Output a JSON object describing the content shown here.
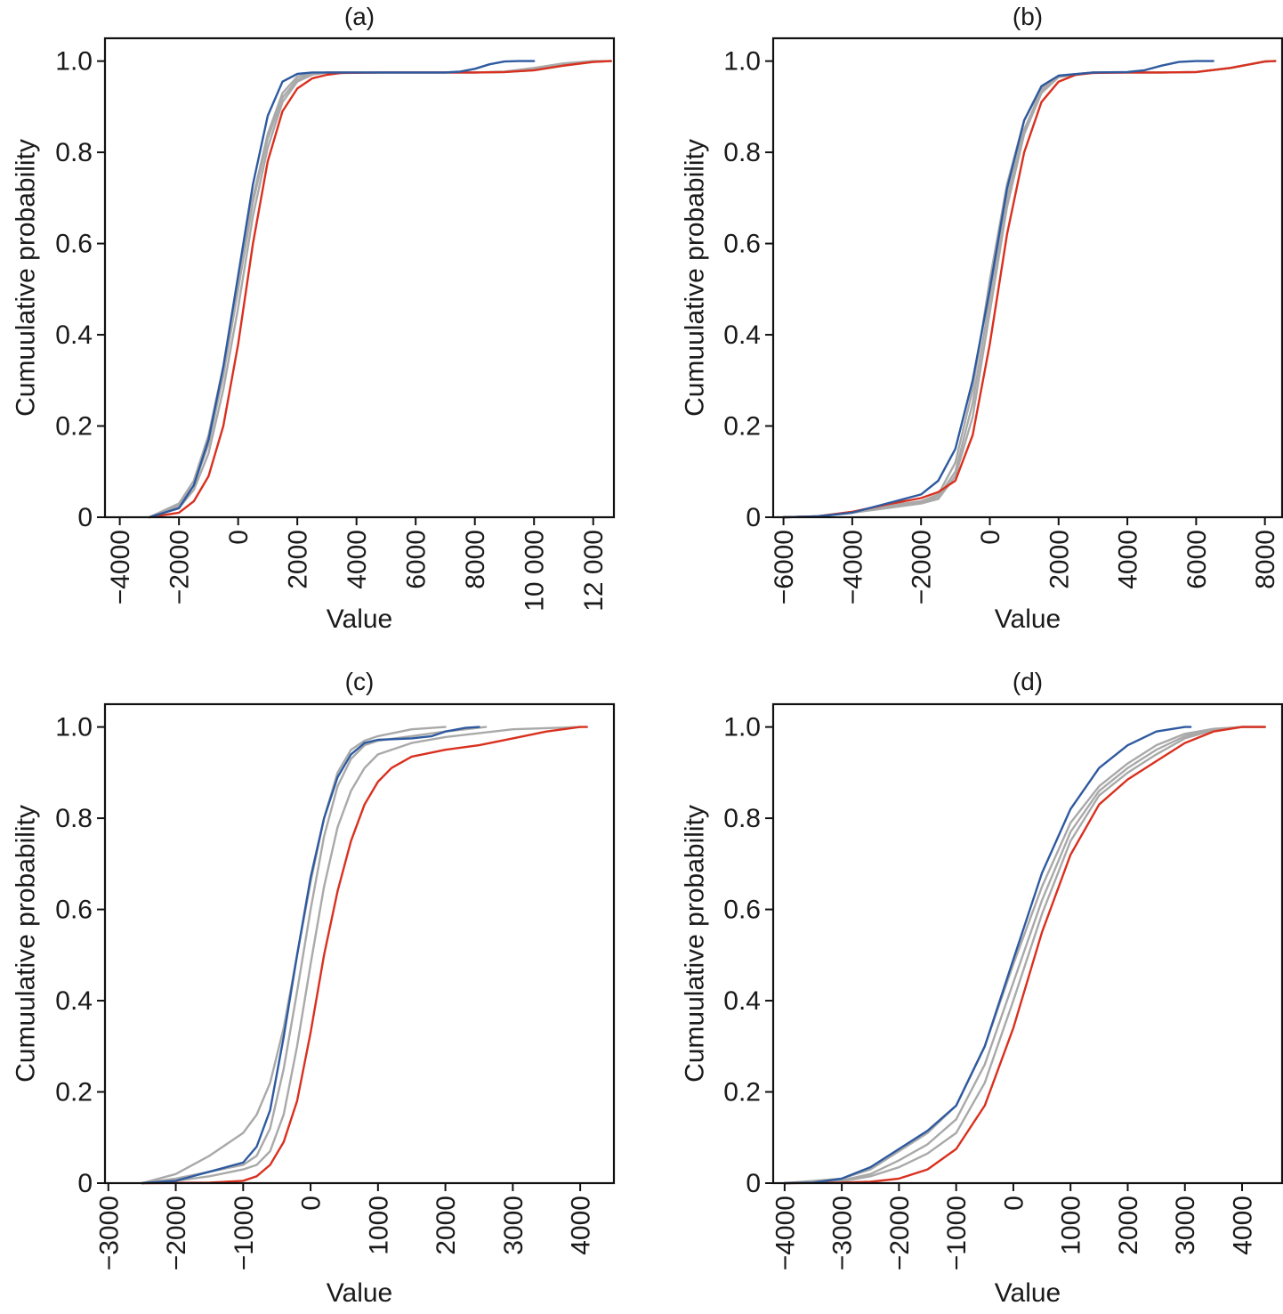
{
  "chart_data": [
    {
      "type": "line",
      "title": "(a)",
      "xlabel": "Value",
      "ylabel": "Cumuulative probability",
      "xlim": [
        -4500,
        12700
      ],
      "ylim": [
        0,
        1.05
      ],
      "xticks": [
        -4000,
        -2000,
        0,
        2000,
        4000,
        6000,
        8000,
        10000,
        12000
      ],
      "xtick_labels": [
        "−4000",
        "−2000",
        "0",
        "2000",
        "4000",
        "6000",
        "8000",
        "10 000",
        "12 000"
      ],
      "yticks": [
        0,
        0.2,
        0.4,
        0.6,
        0.8,
        1.0
      ],
      "ytick_labels": [
        "0",
        "0.2",
        "0.4",
        "0.6",
        "0.8",
        "1.0"
      ],
      "series": [
        {
          "name": "gray-1",
          "color": "#a9a9a9",
          "x": [
            -3000,
            -2000,
            -1500,
            -1000,
            -500,
            0,
            500,
            1000,
            1500,
            2000,
            2500,
            3000,
            5000,
            7000,
            8000,
            9000,
            10000,
            11000,
            12000,
            12600
          ],
          "y": [
            0,
            0.03,
            0.08,
            0.18,
            0.33,
            0.52,
            0.7,
            0.84,
            0.93,
            0.966,
            0.973,
            0.975,
            0.975,
            0.975,
            0.975,
            0.977,
            0.985,
            0.995,
            1.0,
            1.0
          ]
        },
        {
          "name": "gray-2",
          "color": "#a9a9a9",
          "x": [
            -3000,
            -2000,
            -1500,
            -1000,
            -500,
            0,
            500,
            1000,
            1500,
            2000,
            2500,
            3000,
            5000,
            7000,
            8000,
            9000,
            10000,
            11000,
            12000,
            12600
          ],
          "y": [
            0,
            0.025,
            0.07,
            0.16,
            0.31,
            0.5,
            0.69,
            0.83,
            0.92,
            0.96,
            0.972,
            0.975,
            0.975,
            0.975,
            0.975,
            0.976,
            0.982,
            0.992,
            0.999,
            1.0
          ]
        },
        {
          "name": "gray-3",
          "color": "#a9a9a9",
          "x": [
            -3000,
            -2000,
            -1500,
            -1000,
            -500,
            0,
            500,
            1000,
            1500,
            2000,
            2500,
            3000,
            5000,
            7000,
            8000,
            9000,
            10000,
            11000,
            12000,
            12600
          ],
          "y": [
            0,
            0.02,
            0.06,
            0.14,
            0.28,
            0.46,
            0.66,
            0.81,
            0.91,
            0.955,
            0.97,
            0.975,
            0.975,
            0.975,
            0.975,
            0.976,
            0.98,
            0.99,
            0.998,
            1.0
          ]
        },
        {
          "name": "red",
          "color": "#d9301f",
          "x": [
            -3000,
            -2000,
            -1500,
            -1000,
            -500,
            0,
            500,
            1000,
            1500,
            2000,
            2500,
            3000,
            3500,
            5000,
            7000,
            8000,
            9000,
            10000,
            11000,
            12000,
            12600
          ],
          "y": [
            0,
            0.01,
            0.035,
            0.09,
            0.2,
            0.38,
            0.6,
            0.78,
            0.89,
            0.94,
            0.962,
            0.97,
            0.974,
            0.975,
            0.975,
            0.975,
            0.976,
            0.98,
            0.99,
            0.998,
            1.0
          ]
        },
        {
          "name": "blue",
          "color": "#2e5aa0",
          "x": [
            -3000,
            -2000,
            -1500,
            -1000,
            -500,
            0,
            500,
            1000,
            1500,
            2000,
            2500,
            3000,
            5000,
            7000,
            7500,
            8000,
            8500,
            9000,
            9500,
            10000
          ],
          "y": [
            0,
            0.02,
            0.07,
            0.17,
            0.33,
            0.53,
            0.73,
            0.88,
            0.955,
            0.972,
            0.975,
            0.975,
            0.975,
            0.975,
            0.977,
            0.983,
            0.993,
            0.999,
            1.0,
            1.0
          ]
        }
      ]
    },
    {
      "type": "line",
      "title": "(b)",
      "xlabel": "Value",
      "ylabel": "Cumuulative probability",
      "xlim": [
        -6300,
        8500
      ],
      "ylim": [
        0,
        1.05
      ],
      "xticks": [
        -6000,
        -4000,
        -2000,
        0,
        2000,
        4000,
        6000,
        8000
      ],
      "xtick_labels": [
        "−6000",
        "−4000",
        "−2000",
        "0",
        "2000",
        "4000",
        "6000",
        "8000"
      ],
      "yticks": [
        0,
        0.2,
        0.4,
        0.6,
        0.8,
        1.0
      ],
      "ytick_labels": [
        "0",
        "0.2",
        "0.4",
        "0.6",
        "0.8",
        "1.0"
      ],
      "series": [
        {
          "name": "gray-1",
          "color": "#a9a9a9",
          "x": [
            -6000,
            -5000,
            -4000,
            -3000,
            -2000,
            -1500,
            -1000,
            -500,
            0,
            500,
            1000,
            1500,
            2000,
            3000,
            4000,
            5000,
            6000,
            7000,
            8000,
            8300
          ],
          "y": [
            0,
            0.002,
            0.01,
            0.02,
            0.03,
            0.04,
            0.09,
            0.22,
            0.45,
            0.68,
            0.84,
            0.93,
            0.965,
            0.975,
            0.975,
            0.975,
            0.976,
            0.985,
            0.999,
            1.0
          ]
        },
        {
          "name": "gray-2",
          "color": "#a9a9a9",
          "x": [
            -6000,
            -5000,
            -4000,
            -3000,
            -2000,
            -1500,
            -1000,
            -500,
            0,
            500,
            1000,
            1500,
            2000,
            3000,
            4000,
            5000,
            6000,
            7000,
            8000,
            8300
          ],
          "y": [
            0,
            0.002,
            0.012,
            0.022,
            0.033,
            0.045,
            0.1,
            0.25,
            0.48,
            0.7,
            0.85,
            0.935,
            0.967,
            0.975,
            0.975,
            0.975,
            0.976,
            0.985,
            0.999,
            1.0
          ]
        },
        {
          "name": "gray-3",
          "color": "#a9a9a9",
          "x": [
            -6000,
            -5000,
            -4000,
            -3000,
            -2000,
            -1500,
            -1000,
            -500,
            0,
            500,
            1000,
            1500,
            2000,
            3000,
            4000,
            5000,
            6000,
            7000,
            8000,
            8300
          ],
          "y": [
            0,
            0.002,
            0.012,
            0.025,
            0.035,
            0.05,
            0.12,
            0.28,
            0.52,
            0.73,
            0.87,
            0.94,
            0.968,
            0.975,
            0.975,
            0.975,
            0.976,
            0.985,
            0.999,
            1.0
          ]
        },
        {
          "name": "red",
          "color": "#d9301f",
          "x": [
            -6000,
            -5000,
            -4000,
            -3000,
            -2000,
            -1500,
            -1000,
            -500,
            0,
            500,
            1000,
            1500,
            2000,
            2500,
            3000,
            4000,
            5000,
            6000,
            7000,
            8000,
            8300
          ],
          "y": [
            0,
            0.002,
            0.012,
            0.028,
            0.042,
            0.055,
            0.08,
            0.18,
            0.38,
            0.62,
            0.8,
            0.91,
            0.955,
            0.97,
            0.974,
            0.975,
            0.975,
            0.976,
            0.985,
            0.999,
            1.0
          ]
        },
        {
          "name": "blue",
          "color": "#2e5aa0",
          "x": [
            -6000,
            -5000,
            -4000,
            -3000,
            -2000,
            -1500,
            -1000,
            -500,
            0,
            500,
            1000,
            1500,
            2000,
            3000,
            4000,
            4500,
            5000,
            5500,
            6000,
            6500
          ],
          "y": [
            0,
            0.002,
            0.01,
            0.03,
            0.05,
            0.08,
            0.15,
            0.3,
            0.5,
            0.72,
            0.87,
            0.945,
            0.968,
            0.975,
            0.976,
            0.98,
            0.99,
            0.998,
            1.0,
            1.0
          ]
        }
      ]
    },
    {
      "type": "line",
      "title": "(c)",
      "xlabel": "Value",
      "ylabel": "Cumuulative probability",
      "xlim": [
        -3050,
        4500
      ],
      "ylim": [
        0,
        1.05
      ],
      "xticks": [
        -3000,
        -2000,
        -1000,
        0,
        1000,
        2000,
        3000,
        4000
      ],
      "xtick_labels": [
        "−3000",
        "−2000",
        "−1000",
        "0",
        "1000",
        "2000",
        "3000",
        "4000"
      ],
      "yticks": [
        0,
        0.2,
        0.4,
        0.6,
        0.8,
        1.0
      ],
      "ytick_labels": [
        "0",
        "0.2",
        "0.4",
        "0.6",
        "0.8",
        "1.0"
      ],
      "series": [
        {
          "name": "gray-1",
          "color": "#a9a9a9",
          "x": [
            -2500,
            -2000,
            -1500,
            -1000,
            -800,
            -600,
            -400,
            -200,
            0,
            200,
            400,
            600,
            800,
            1000,
            1500,
            2000
          ],
          "y": [
            0,
            0.02,
            0.06,
            0.11,
            0.15,
            0.22,
            0.34,
            0.5,
            0.66,
            0.8,
            0.9,
            0.95,
            0.97,
            0.98,
            0.995,
            1.0
          ]
        },
        {
          "name": "gray-2",
          "color": "#a9a9a9",
          "x": [
            -2500,
            -2000,
            -1500,
            -1000,
            -800,
            -600,
            -400,
            -200,
            0,
            200,
            400,
            600,
            800,
            1000,
            1500,
            2000,
            2600
          ],
          "y": [
            0,
            0.01,
            0.025,
            0.04,
            0.06,
            0.12,
            0.25,
            0.42,
            0.6,
            0.76,
            0.87,
            0.93,
            0.96,
            0.97,
            0.98,
            0.99,
            1.0
          ]
        },
        {
          "name": "gray-3",
          "color": "#a9a9a9",
          "x": [
            -2500,
            -2000,
            -1500,
            -1000,
            -800,
            -600,
            -400,
            -200,
            0,
            200,
            400,
            600,
            800,
            1000,
            1500,
            2000,
            3000,
            4000
          ],
          "y": [
            0,
            0.005,
            0.015,
            0.03,
            0.04,
            0.07,
            0.15,
            0.3,
            0.48,
            0.65,
            0.78,
            0.86,
            0.91,
            0.94,
            0.965,
            0.978,
            0.995,
            1.0
          ]
        },
        {
          "name": "red",
          "color": "#d9301f",
          "x": [
            -2500,
            -1500,
            -1000,
            -800,
            -600,
            -400,
            -200,
            0,
            200,
            400,
            600,
            800,
            1000,
            1200,
            1500,
            2000,
            2500,
            3000,
            3500,
            4000,
            4100
          ],
          "y": [
            0,
            0.001,
            0.005,
            0.015,
            0.04,
            0.09,
            0.18,
            0.33,
            0.5,
            0.64,
            0.75,
            0.83,
            0.88,
            0.91,
            0.935,
            0.95,
            0.96,
            0.975,
            0.99,
            1.0,
            1.0
          ]
        },
        {
          "name": "blue",
          "color": "#2e5aa0",
          "x": [
            -2500,
            -2000,
            -1500,
            -1000,
            -800,
            -600,
            -400,
            -200,
            0,
            200,
            400,
            600,
            800,
            1000,
            1500,
            1800,
            2000,
            2300,
            2500
          ],
          "y": [
            0,
            0.005,
            0.025,
            0.045,
            0.08,
            0.16,
            0.32,
            0.5,
            0.67,
            0.8,
            0.89,
            0.94,
            0.965,
            0.972,
            0.975,
            0.98,
            0.99,
            0.998,
            1.0
          ]
        }
      ]
    },
    {
      "type": "line",
      "title": "(d)",
      "xlabel": "Value",
      "ylabel": "Cumuulative probability",
      "xlim": [
        -4200,
        4700
      ],
      "ylim": [
        0,
        1.05
      ],
      "xticks": [
        -4000,
        -3000,
        -2000,
        -1000,
        0,
        1000,
        2000,
        3000,
        4000
      ],
      "xtick_labels": [
        "−4000",
        "−3000",
        "−2000",
        "−1000",
        "0",
        "1000",
        "2000",
        "3000",
        "4000"
      ],
      "yticks": [
        0,
        0.2,
        0.4,
        0.6,
        0.8,
        1.0
      ],
      "ytick_labels": [
        "0",
        "0.2",
        "0.4",
        "0.6",
        "0.8",
        "1.0"
      ],
      "series": [
        {
          "name": "gray-1",
          "color": "#a9a9a9",
          "x": [
            -4000,
            -3000,
            -2500,
            -2000,
            -1500,
            -1000,
            -500,
            0,
            500,
            1000,
            1500,
            2000,
            2500,
            3000,
            3500,
            4000,
            4400
          ],
          "y": [
            0,
            0.01,
            0.03,
            0.07,
            0.11,
            0.17,
            0.3,
            0.48,
            0.65,
            0.79,
            0.87,
            0.92,
            0.96,
            0.985,
            0.996,
            1.0,
            1.0
          ]
        },
        {
          "name": "gray-2",
          "color": "#a9a9a9",
          "x": [
            -4000,
            -3000,
            -2500,
            -2000,
            -1500,
            -1000,
            -500,
            0,
            500,
            1000,
            1500,
            2000,
            2500,
            3000,
            3500,
            4000,
            4400
          ],
          "y": [
            0,
            0.006,
            0.02,
            0.05,
            0.085,
            0.14,
            0.26,
            0.44,
            0.62,
            0.77,
            0.86,
            0.91,
            0.95,
            0.98,
            0.995,
            1.0,
            1.0
          ]
        },
        {
          "name": "gray-3",
          "color": "#a9a9a9",
          "x": [
            -4000,
            -3000,
            -2500,
            -2000,
            -1500,
            -1000,
            -500,
            0,
            500,
            1000,
            1500,
            2000,
            2500,
            3000,
            3500,
            4000,
            4400
          ],
          "y": [
            0,
            0.004,
            0.015,
            0.035,
            0.065,
            0.11,
            0.22,
            0.4,
            0.59,
            0.75,
            0.85,
            0.9,
            0.94,
            0.975,
            0.993,
            1.0,
            1.0
          ]
        },
        {
          "name": "red",
          "color": "#d9301f",
          "x": [
            -4000,
            -3000,
            -2500,
            -2000,
            -1500,
            -1000,
            -500,
            0,
            500,
            1000,
            1500,
            2000,
            2500,
            3000,
            3500,
            4000,
            4400
          ],
          "y": [
            0,
            0.001,
            0.003,
            0.01,
            0.03,
            0.075,
            0.17,
            0.34,
            0.55,
            0.72,
            0.83,
            0.885,
            0.925,
            0.965,
            0.99,
            1.0,
            1.0
          ]
        },
        {
          "name": "blue",
          "color": "#2e5aa0",
          "x": [
            -4000,
            -3500,
            -3000,
            -2500,
            -2000,
            -1500,
            -1000,
            -500,
            0,
            500,
            1000,
            1500,
            2000,
            2500,
            3000,
            3100
          ],
          "y": [
            0,
            0.001,
            0.01,
            0.035,
            0.075,
            0.115,
            0.17,
            0.3,
            0.49,
            0.68,
            0.82,
            0.91,
            0.96,
            0.99,
            1.0,
            1.0
          ]
        }
      ]
    }
  ]
}
